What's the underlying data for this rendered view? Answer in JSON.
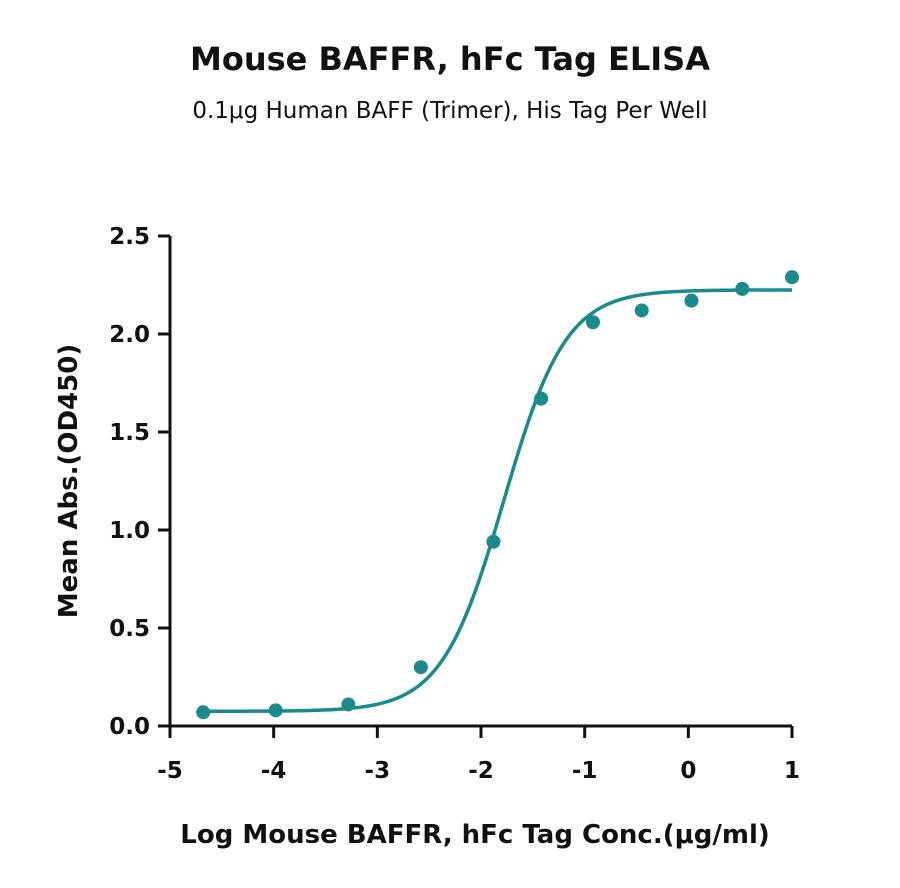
{
  "chart_data": {
    "type": "scatter",
    "title": "Mouse BAFFR, hFc Tag ELISA",
    "subtitle": "0.1μg Human BAFF (Trimer), His Tag Per Well",
    "xlabel": "Log Mouse BAFFR, hFc Tag Conc.(μg/ml)",
    "ylabel": "Mean Abs.(OD450)",
    "xlim": [
      -5,
      1
    ],
    "ylim": [
      0,
      2.5
    ],
    "x_ticks": [
      -5,
      -4,
      -3,
      -2,
      -1,
      0,
      1
    ],
    "x_tick_labels": [
      "-5",
      "-4",
      "-3",
      "-2",
      "-1",
      "0",
      "1"
    ],
    "y_ticks": [
      0,
      0.5,
      1.0,
      1.5,
      2.0,
      2.5
    ],
    "y_tick_labels": [
      "0.0",
      "0.5",
      "1.0",
      "1.5",
      "2.0",
      "2.5"
    ],
    "grid": false,
    "color": "#1a8a8c",
    "series": [
      {
        "x": [
          -4.68,
          -3.98,
          -3.28,
          -2.58,
          -1.88,
          -1.42,
          -0.92,
          -0.45,
          0.03,
          0.52,
          1.0
        ],
        "values": [
          0.07,
          0.08,
          0.11,
          0.3,
          0.94,
          1.67,
          2.06,
          2.12,
          2.17,
          2.23,
          2.29
        ],
        "fit": {
          "model": "4PL",
          "bottom": 0.075,
          "top": 2.225,
          "log_ec50": -1.78,
          "hill_slope": 1.45,
          "x_range": [
            -4.68,
            1.0
          ]
        }
      }
    ]
  }
}
